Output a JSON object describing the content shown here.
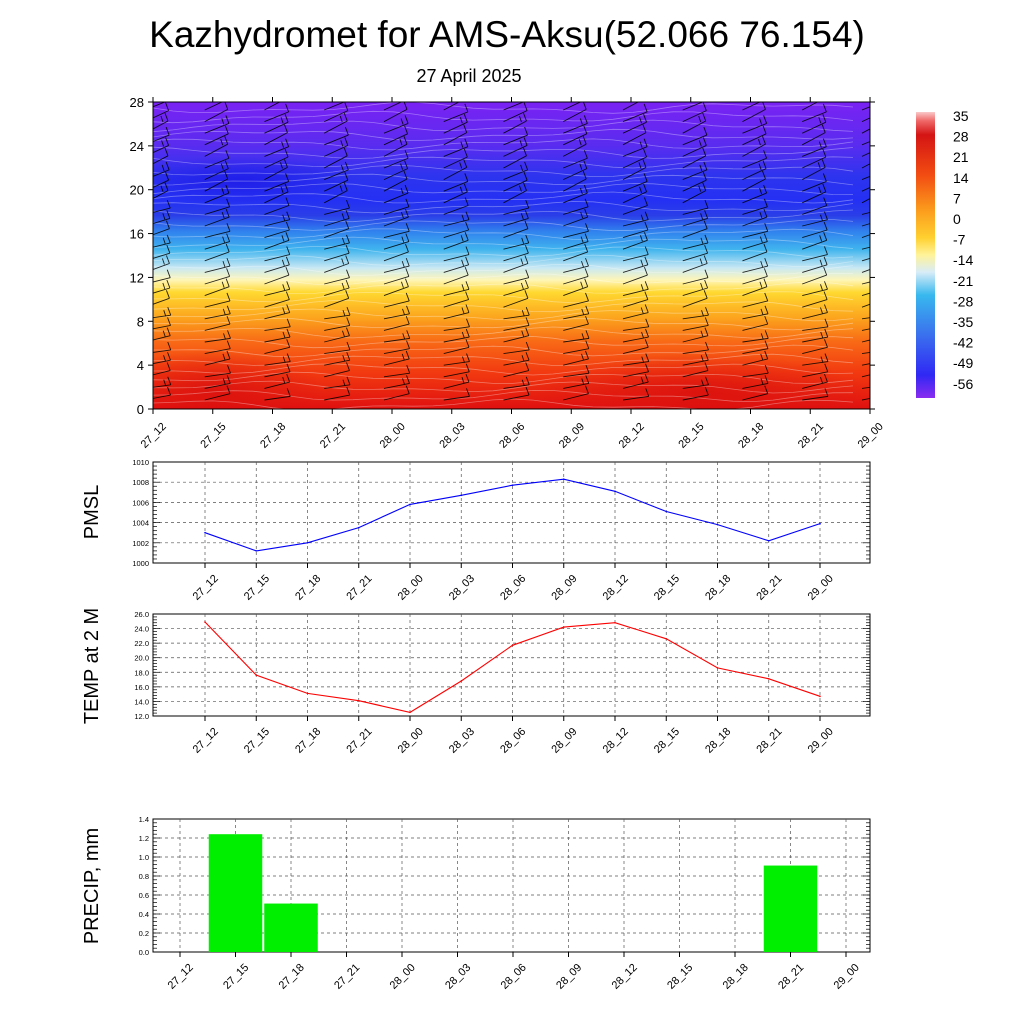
{
  "title": "Kazhydromet for AMS-Aksu(52.066 76.154)",
  "subtitle": "27 April 2025",
  "time_labels": [
    "27_12",
    "27_15",
    "27_18",
    "27_21",
    "28_00",
    "28_03",
    "28_06",
    "28_09",
    "28_12",
    "28_15",
    "28_18",
    "28_21",
    "29_00"
  ],
  "chart_data": [
    {
      "type": "heatmap",
      "name": "vertical-cross-section",
      "x": [
        "27_12",
        "27_15",
        "27_18",
        "27_21",
        "28_00",
        "28_03",
        "28_06",
        "28_09",
        "28_12",
        "28_15",
        "28_18",
        "28_21",
        "29_00"
      ],
      "ylim": [
        0,
        28
      ],
      "yticks": [
        0,
        4,
        8,
        12,
        16,
        20,
        24,
        28
      ],
      "colorbar": {
        "ticks": [
          35,
          28,
          21,
          14,
          7,
          0,
          -7,
          -14,
          -21,
          -28,
          -35,
          -42,
          -49,
          -56
        ],
        "range": [
          -60,
          36
        ]
      },
      "overlay": "wind-barbs",
      "grid": false
    },
    {
      "type": "line",
      "ylabel": "PMSL",
      "x": [
        "27_12",
        "27_15",
        "27_18",
        "27_21",
        "28_00",
        "28_03",
        "28_06",
        "28_09",
        "28_12",
        "28_15",
        "28_18",
        "28_21",
        "29_00"
      ],
      "values": [
        1003.0,
        1001.2,
        1002.0,
        1003.5,
        1005.8,
        1006.7,
        1007.7,
        1008.3,
        1007.1,
        1005.1,
        1003.8,
        1002.2,
        1003.9
      ],
      "ylim": [
        1000,
        1010
      ],
      "yticks": [
        1000,
        1002,
        1004,
        1006,
        1008,
        1010
      ],
      "color": "#0000ff",
      "grid": true
    },
    {
      "type": "line",
      "ylabel": "TEMP at 2 M",
      "x": [
        "27_12",
        "27_15",
        "27_18",
        "27_21",
        "28_00",
        "28_03",
        "28_06",
        "28_09",
        "28_12",
        "28_15",
        "28_18",
        "28_21",
        "29_00"
      ],
      "values": [
        24.9,
        17.6,
        15.1,
        14.1,
        12.5,
        16.8,
        21.7,
        24.2,
        24.8,
        22.6,
        18.6,
        17.1,
        14.7
      ],
      "ylim": [
        12,
        26
      ],
      "yticks": [
        "12.0",
        "14.0",
        "16.0",
        "18.0",
        "20.0",
        "22.0",
        "24.0",
        "26.0"
      ],
      "color": "#ff0000",
      "grid": true
    },
    {
      "type": "bar",
      "ylabel": "PRECIP, mm",
      "categories": [
        "27_12",
        "27_15",
        "27_18",
        "27_21",
        "28_00",
        "28_03",
        "28_06",
        "28_09",
        "28_12",
        "28_15",
        "28_18",
        "28_21",
        "29_00"
      ],
      "values": [
        0,
        1.24,
        0.51,
        0,
        0,
        0,
        0,
        0,
        0,
        0,
        0,
        0.91,
        0
      ],
      "ylim": [
        0,
        1.4
      ],
      "yticks": [
        "0.0",
        "0.2",
        "0.4",
        "0.6",
        "0.8",
        "1.0",
        "1.2",
        "1.4"
      ],
      "color": "#00ee00",
      "grid": true
    }
  ]
}
